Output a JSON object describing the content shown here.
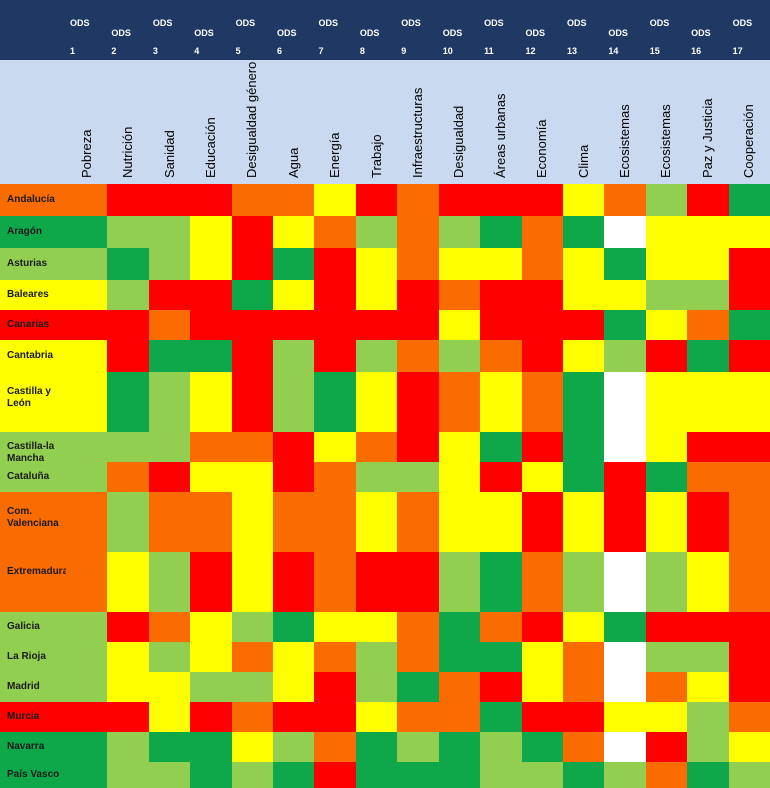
{
  "chart_data": {
    "type": "heatmap",
    "columns": [
      {
        "ods": "ODS",
        "num": "1",
        "label": "Pobreza"
      },
      {
        "ods": "ODS",
        "num": "2",
        "label": "Nutrición"
      },
      {
        "ods": "ODS",
        "num": "3",
        "label": "Sanidad"
      },
      {
        "ods": "ODS",
        "num": "4",
        "label": "Educación"
      },
      {
        "ods": "ODS",
        "num": "5",
        "label": "Desigualdad género"
      },
      {
        "ods": "ODS",
        "num": "6",
        "label": "Agua"
      },
      {
        "ods": "ODS",
        "num": "7",
        "label": "Energía"
      },
      {
        "ods": "ODS",
        "num": "8",
        "label": "Trabajo"
      },
      {
        "ods": "ODS",
        "num": "9",
        "label": "Infraestructuras"
      },
      {
        "ods": "ODS",
        "num": "10",
        "label": "Desigualdad"
      },
      {
        "ods": "ODS",
        "num": "11",
        "label": "Áreas urbanas"
      },
      {
        "ods": "ODS",
        "num": "12",
        "label": "Economía"
      },
      {
        "ods": "ODS",
        "num": "13",
        "label": "Clima"
      },
      {
        "ods": "ODS",
        "num": "14",
        "label": "Ecosistemas"
      },
      {
        "ods": "ODS",
        "num": "15",
        "label": "Ecosistemas"
      },
      {
        "ods": "ODS",
        "num": "16",
        "label": "Paz y Justicia"
      },
      {
        "ods": "ODS",
        "num": "17",
        "label": "Cooperación"
      }
    ],
    "rows": [
      {
        "region": "Andalucía",
        "values": [
          3,
          4,
          4,
          4,
          3,
          3,
          2,
          4,
          3,
          4,
          4,
          4,
          2,
          3,
          1,
          4,
          0
        ]
      },
      {
        "region": "Aragón",
        "values": [
          0,
          1,
          1,
          2,
          4,
          2,
          3,
          1,
          3,
          1,
          0,
          3,
          0,
          -1,
          2,
          2,
          2
        ]
      },
      {
        "region": "Asturias",
        "values": [
          1,
          0,
          1,
          2,
          4,
          0,
          4,
          2,
          3,
          2,
          2,
          3,
          2,
          0,
          2,
          2,
          4
        ]
      },
      {
        "region": "Baleares",
        "values": [
          2,
          1,
          4,
          4,
          0,
          2,
          4,
          2,
          4,
          3,
          4,
          4,
          2,
          2,
          1,
          1,
          4
        ]
      },
      {
        "region": "Canarias",
        "values": [
          4,
          4,
          3,
          4,
          4,
          4,
          4,
          4,
          4,
          2,
          4,
          4,
          4,
          0,
          2,
          3,
          0
        ]
      },
      {
        "region": "Cantabria",
        "values": [
          2,
          4,
          0,
          0,
          4,
          1,
          4,
          1,
          3,
          1,
          3,
          4,
          2,
          1,
          4,
          0,
          4
        ]
      },
      {
        "region": "Castilla y León",
        "values": [
          2,
          0,
          1,
          2,
          4,
          1,
          0,
          2,
          4,
          3,
          2,
          3,
          0,
          -1,
          2,
          2,
          2
        ]
      },
      {
        "region": "Castilla-la Mancha",
        "values": [
          1,
          1,
          1,
          3,
          3,
          4,
          2,
          3,
          4,
          2,
          0,
          4,
          0,
          -1,
          2,
          4,
          4
        ]
      },
      {
        "region": "Cataluña",
        "values": [
          1,
          3,
          4,
          2,
          2,
          4,
          3,
          1,
          1,
          2,
          4,
          2,
          0,
          4,
          0,
          3,
          3
        ]
      },
      {
        "region": "Com. Valenciana",
        "values": [
          3,
          1,
          3,
          3,
          2,
          3,
          3,
          2,
          3,
          2,
          2,
          4,
          2,
          4,
          2,
          4,
          3
        ]
      },
      {
        "region": "Extremadura",
        "values": [
          3,
          2,
          1,
          4,
          2,
          4,
          3,
          4,
          4,
          1,
          0,
          3,
          1,
          -1,
          1,
          2,
          3
        ]
      },
      {
        "region": "Galicia",
        "values": [
          1,
          4,
          3,
          2,
          1,
          0,
          2,
          2,
          3,
          0,
          3,
          4,
          2,
          0,
          4,
          4,
          4
        ]
      },
      {
        "region": "La Rioja",
        "values": [
          1,
          2,
          1,
          2,
          3,
          2,
          3,
          1,
          3,
          0,
          0,
          2,
          3,
          -1,
          1,
          1,
          4
        ]
      },
      {
        "region": "Madrid",
        "values": [
          1,
          2,
          2,
          1,
          1,
          2,
          4,
          1,
          0,
          3,
          4,
          2,
          3,
          -1,
          3,
          2,
          4
        ]
      },
      {
        "region": "Murcia",
        "values": [
          4,
          4,
          2,
          4,
          3,
          4,
          4,
          2,
          3,
          3,
          0,
          4,
          4,
          2,
          2,
          1,
          3
        ]
      },
      {
        "region": "Navarra",
        "values": [
          0,
          1,
          0,
          0,
          2,
          1,
          3,
          0,
          1,
          0,
          1,
          0,
          3,
          -1,
          4,
          1,
          2
        ]
      },
      {
        "region": "País Vasco",
        "values": [
          0,
          1,
          1,
          0,
          1,
          0,
          4,
          0,
          0,
          0,
          1,
          1,
          0,
          1,
          3,
          0,
          1
        ]
      }
    ],
    "scale": {
      "-1": "#ffffff",
      "0": "#0ea84b",
      "1": "#92cf50",
      "2": "#ffff00",
      "3": "#fa6b00",
      "4": "#ff0000"
    },
    "header_color": "#1f3864",
    "subheader_color": "#c9daf0"
  }
}
